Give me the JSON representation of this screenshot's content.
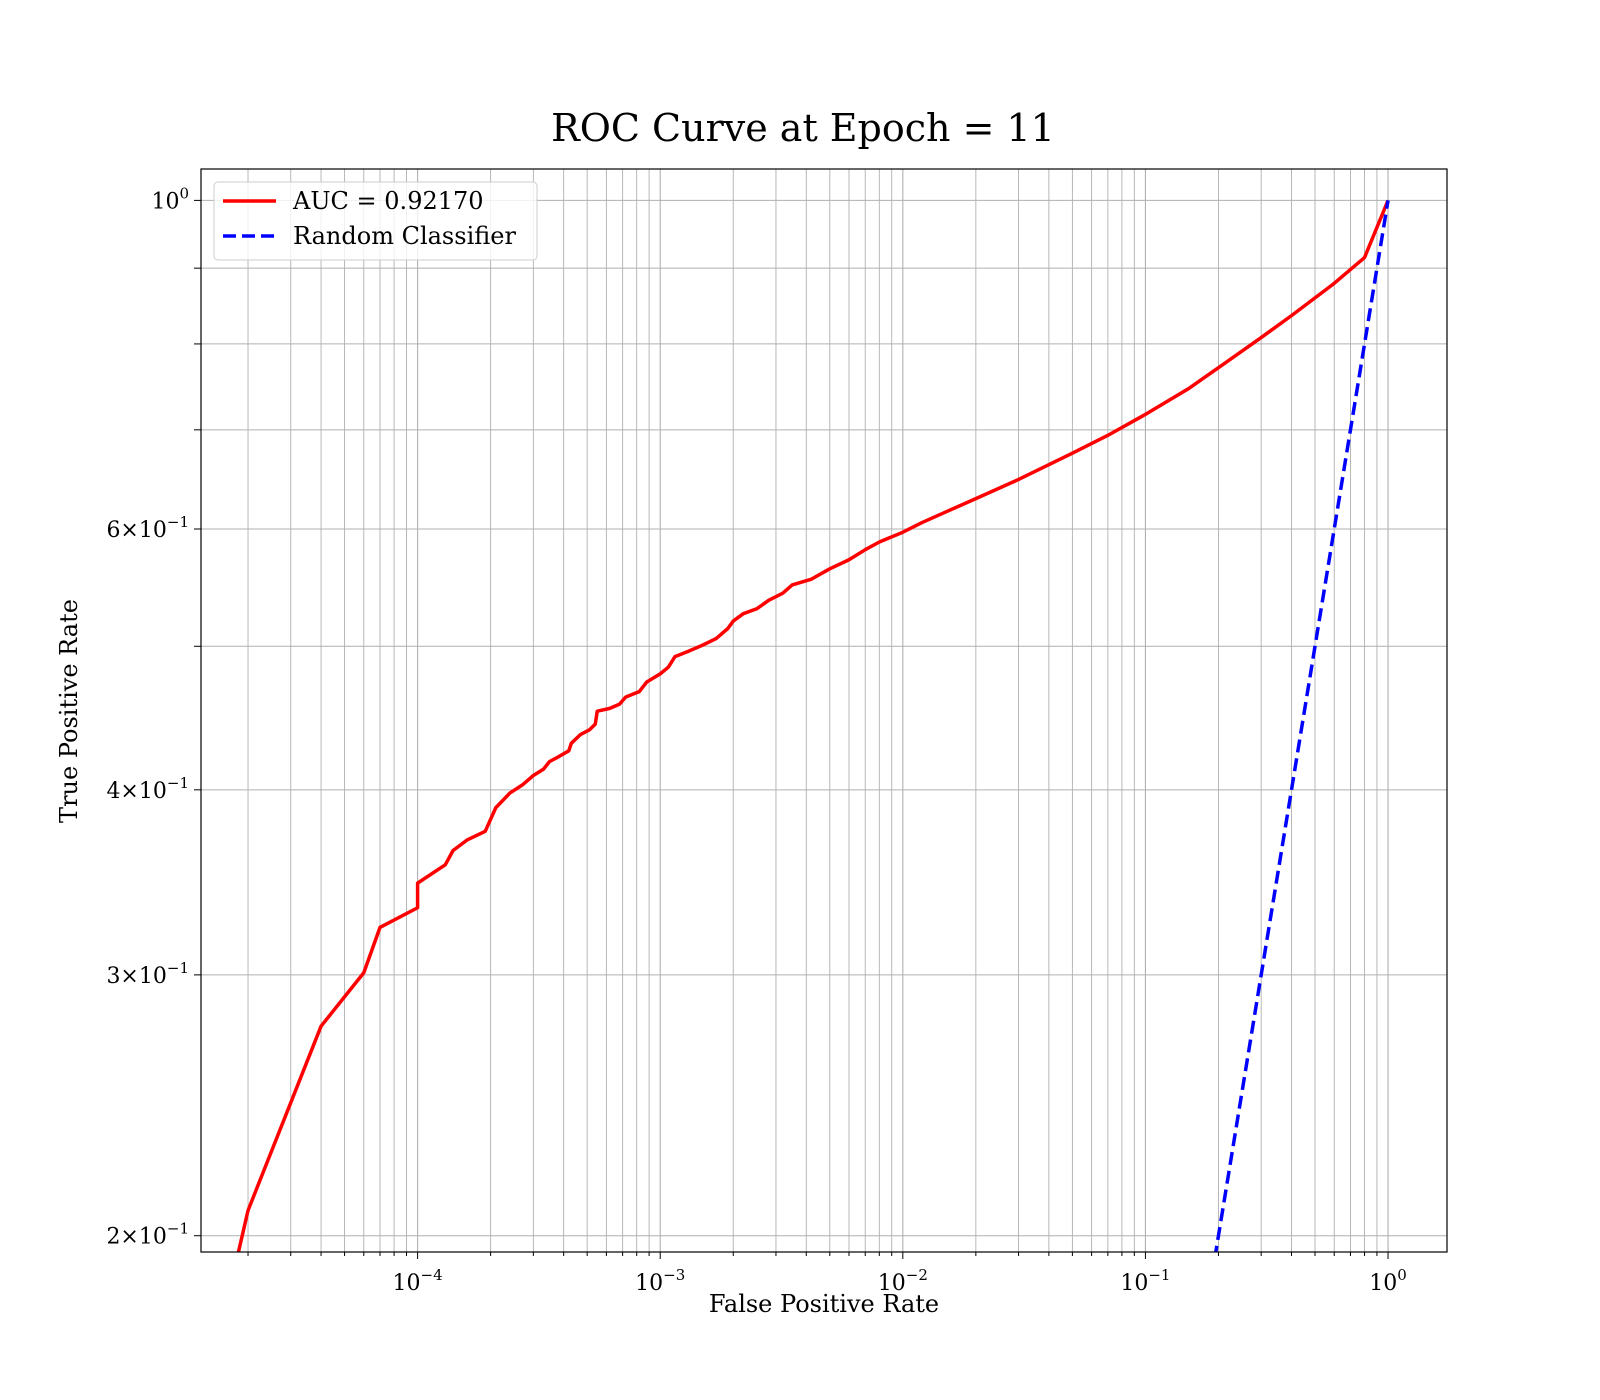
{
  "chart_data": {
    "type": "line",
    "title": "ROC Curve at Epoch = 11",
    "xlabel": "False Positive Rate",
    "ylabel": "True Positive Rate",
    "xscale": "log",
    "yscale": "log",
    "xlim": [
      1.28e-05,
      1.75
    ],
    "ylim": [
      0.195,
      1.05
    ],
    "grid": "both (major and minor)",
    "legend_position": "top-left",
    "x_ticks": [
      {
        "base": "10",
        "exp": "−4",
        "value": 0.0001
      },
      {
        "base": "10",
        "exp": "−3",
        "value": 0.001
      },
      {
        "base": "10",
        "exp": "−2",
        "value": 0.01
      },
      {
        "base": "10",
        "exp": "−1",
        "value": 0.1
      },
      {
        "base": "10",
        "exp": "0",
        "value": 1
      }
    ],
    "y_ticks": [
      {
        "mant": "",
        "base": "10",
        "exp": "0",
        "value": 1.0
      },
      {
        "mant": "6×",
        "base": "10",
        "exp": "−1",
        "value": 0.6
      },
      {
        "mant": "4×",
        "base": "10",
        "exp": "−1",
        "value": 0.4
      },
      {
        "mant": "3×",
        "base": "10",
        "exp": "−1",
        "value": 0.3
      },
      {
        "mant": "2×",
        "base": "10",
        "exp": "−1",
        "value": 0.2
      }
    ],
    "series": [
      {
        "name": "AUC = 0.92170",
        "color": "#ff0000",
        "style": "solid",
        "points": [
          [
            1.8e-05,
            0.193
          ],
          [
            2e-05,
            0.208
          ],
          [
            4e-05,
            0.277
          ],
          [
            6e-05,
            0.301
          ],
          [
            7e-05,
            0.323
          ],
          [
            0.0001,
            0.333
          ],
          [
            0.0001,
            0.346
          ],
          [
            0.00013,
            0.356
          ],
          [
            0.00014,
            0.364
          ],
          [
            0.00016,
            0.37
          ],
          [
            0.00019,
            0.375
          ],
          [
            0.00021,
            0.389
          ],
          [
            0.00024,
            0.398
          ],
          [
            0.00027,
            0.403
          ],
          [
            0.0003,
            0.409
          ],
          [
            0.00033,
            0.413
          ],
          [
            0.00035,
            0.418
          ],
          [
            0.00038,
            0.421
          ],
          [
            0.00042,
            0.425
          ],
          [
            0.00043,
            0.43
          ],
          [
            0.00047,
            0.436
          ],
          [
            0.00051,
            0.439
          ],
          [
            0.00054,
            0.443
          ],
          [
            0.00055,
            0.452
          ],
          [
            0.00062,
            0.454
          ],
          [
            0.00068,
            0.457
          ],
          [
            0.00072,
            0.462
          ],
          [
            0.00082,
            0.466
          ],
          [
            0.00088,
            0.473
          ],
          [
            0.001,
            0.479
          ],
          [
            0.00108,
            0.484
          ],
          [
            0.00115,
            0.492
          ],
          [
            0.0013,
            0.496
          ],
          [
            0.0015,
            0.501
          ],
          [
            0.0017,
            0.506
          ],
          [
            0.0019,
            0.514
          ],
          [
            0.002,
            0.52
          ],
          [
            0.0022,
            0.526
          ],
          [
            0.0025,
            0.53
          ],
          [
            0.0028,
            0.537
          ],
          [
            0.0032,
            0.543
          ],
          [
            0.0035,
            0.55
          ],
          [
            0.0042,
            0.555
          ],
          [
            0.005,
            0.564
          ],
          [
            0.006,
            0.572
          ],
          [
            0.007,
            0.581
          ],
          [
            0.008,
            0.588
          ],
          [
            0.01,
            0.597
          ],
          [
            0.012,
            0.606
          ],
          [
            0.015,
            0.616
          ],
          [
            0.02,
            0.629
          ],
          [
            0.03,
            0.648
          ],
          [
            0.05,
            0.675
          ],
          [
            0.07,
            0.694
          ],
          [
            0.1,
            0.717
          ],
          [
            0.15,
            0.746
          ],
          [
            0.2,
            0.771
          ],
          [
            0.3,
            0.808
          ],
          [
            0.4,
            0.836
          ],
          [
            0.6,
            0.879
          ],
          [
            0.8,
            0.915
          ],
          [
            1.0,
            1.0
          ]
        ]
      },
      {
        "name": "Random Classifier",
        "color": "#0000ff",
        "style": "dashed",
        "points": [
          [
            0.193,
            0.193
          ],
          [
            1.0,
            1.0
          ]
        ]
      }
    ]
  }
}
